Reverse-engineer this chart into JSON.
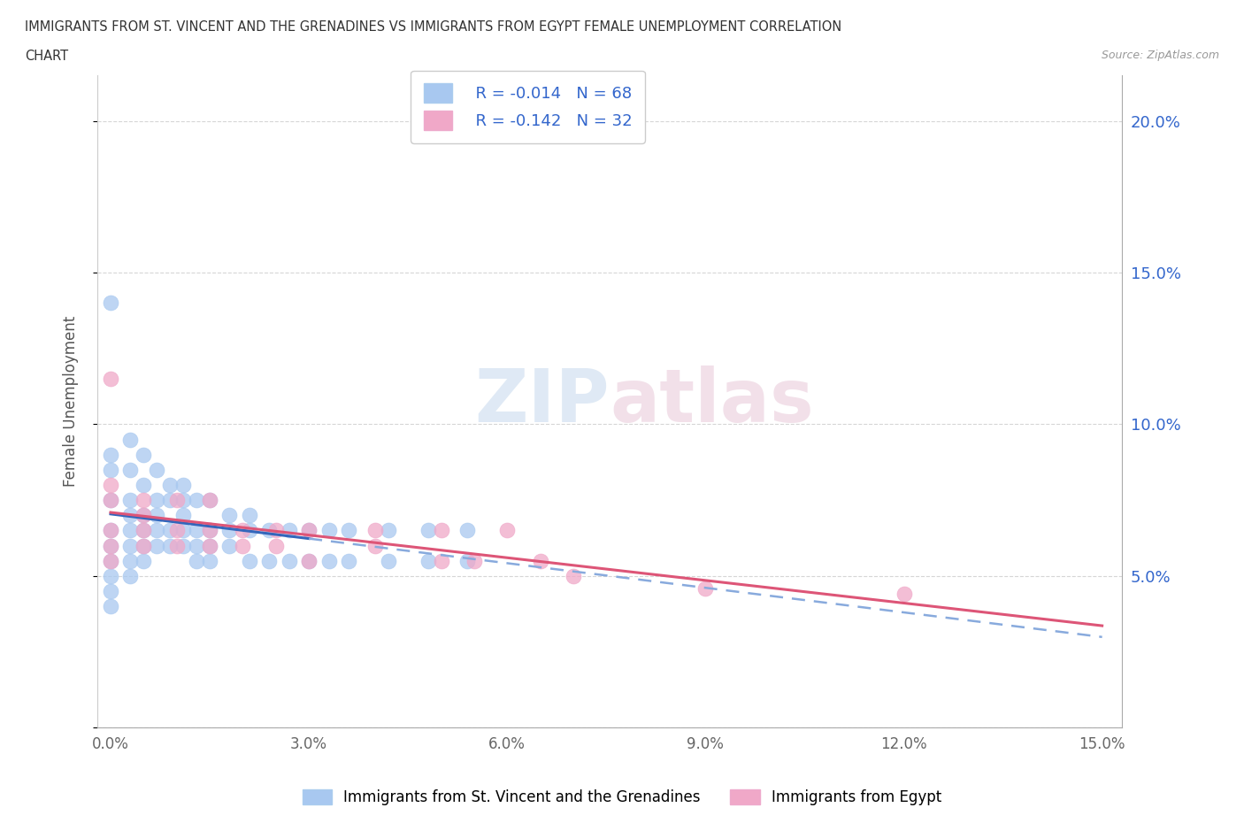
{
  "title_line1": "IMMIGRANTS FROM ST. VINCENT AND THE GRENADINES VS IMMIGRANTS FROM EGYPT FEMALE UNEMPLOYMENT CORRELATION",
  "title_line2": "CHART",
  "source": "Source: ZipAtlas.com",
  "ylabel": "Female Unemployment",
  "color_blue": "#a8c8f0",
  "color_pink": "#f0a8c8",
  "line_blue_solid": "#3366bb",
  "line_blue_dash": "#88aadd",
  "line_pink": "#dd5577",
  "legend_text_color": "#3366cc",
  "watermark_color": "#d8e8f5",
  "watermark_text_color": "#b0c8e0",
  "r_blue": -0.014,
  "n_blue": 68,
  "r_pink": -0.142,
  "n_pink": 32,
  "blue_x": [
    0.0,
    0.0,
    0.0,
    0.0,
    0.0,
    0.0,
    0.0,
    0.0,
    0.0,
    0.0,
    0.003,
    0.003,
    0.003,
    0.003,
    0.003,
    0.003,
    0.003,
    0.003,
    0.005,
    0.005,
    0.005,
    0.005,
    0.005,
    0.005,
    0.007,
    0.007,
    0.007,
    0.007,
    0.007,
    0.009,
    0.009,
    0.009,
    0.009,
    0.011,
    0.011,
    0.011,
    0.011,
    0.011,
    0.013,
    0.013,
    0.013,
    0.013,
    0.015,
    0.015,
    0.015,
    0.015,
    0.018,
    0.018,
    0.018,
    0.021,
    0.021,
    0.021,
    0.024,
    0.024,
    0.027,
    0.027,
    0.03,
    0.03,
    0.033,
    0.033,
    0.036,
    0.036,
    0.042,
    0.042,
    0.048,
    0.048,
    0.054,
    0.054
  ],
  "blue_y": [
    0.14,
    0.09,
    0.085,
    0.075,
    0.065,
    0.06,
    0.055,
    0.05,
    0.045,
    0.04,
    0.095,
    0.085,
    0.075,
    0.07,
    0.065,
    0.06,
    0.055,
    0.05,
    0.09,
    0.08,
    0.07,
    0.065,
    0.06,
    0.055,
    0.085,
    0.075,
    0.07,
    0.065,
    0.06,
    0.08,
    0.075,
    0.065,
    0.06,
    0.08,
    0.075,
    0.07,
    0.065,
    0.06,
    0.075,
    0.065,
    0.06,
    0.055,
    0.075,
    0.065,
    0.06,
    0.055,
    0.07,
    0.065,
    0.06,
    0.07,
    0.065,
    0.055,
    0.065,
    0.055,
    0.065,
    0.055,
    0.065,
    0.055,
    0.065,
    0.055,
    0.065,
    0.055,
    0.065,
    0.055,
    0.065,
    0.055,
    0.065,
    0.055
  ],
  "pink_x": [
    0.0,
    0.0,
    0.0,
    0.0,
    0.0,
    0.0,
    0.005,
    0.005,
    0.005,
    0.005,
    0.01,
    0.01,
    0.01,
    0.015,
    0.015,
    0.015,
    0.02,
    0.02,
    0.025,
    0.025,
    0.03,
    0.03,
    0.04,
    0.04,
    0.05,
    0.05,
    0.055,
    0.06,
    0.065,
    0.07,
    0.09,
    0.12
  ],
  "pink_y": [
    0.115,
    0.08,
    0.075,
    0.065,
    0.06,
    0.055,
    0.075,
    0.07,
    0.065,
    0.06,
    0.075,
    0.065,
    0.06,
    0.075,
    0.065,
    0.06,
    0.065,
    0.06,
    0.065,
    0.06,
    0.065,
    0.055,
    0.065,
    0.06,
    0.065,
    0.055,
    0.055,
    0.065,
    0.055,
    0.05,
    0.046,
    0.044
  ]
}
